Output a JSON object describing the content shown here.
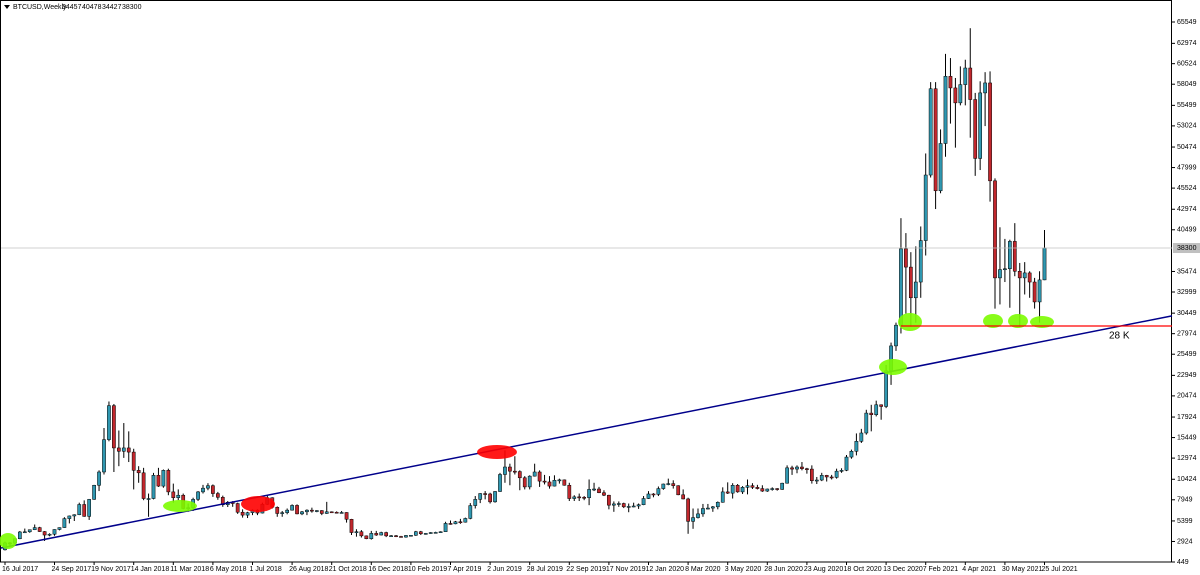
{
  "chart_data": {
    "type": "candlestick",
    "title": "BTCUSD,Weekly",
    "categories": [
      "16 Jul 2017",
      null,
      null,
      null,
      null,
      null,
      null,
      null,
      null,
      null,
      "24 Sep 2017",
      null,
      null,
      null,
      null,
      null,
      null,
      null,
      "19 Nov 2017",
      null,
      null,
      null,
      null,
      null,
      null,
      null,
      "14 Jan 2018",
      null,
      null,
      null,
      null,
      null,
      null,
      null,
      "11 Mar 2018",
      null,
      null,
      null,
      null,
      null,
      null,
      null,
      "6 May 2018",
      null,
      null,
      null,
      null,
      null,
      null,
      null,
      "1 Jul 2018",
      null,
      null,
      null,
      null,
      null,
      null,
      null,
      "26 Aug 2018",
      null,
      null,
      null,
      null,
      null,
      null,
      null,
      "21 Oct 2018",
      null,
      null,
      null,
      null,
      null,
      null,
      null,
      "16 Dec 2018",
      null,
      null,
      null,
      null,
      null,
      null,
      null,
      "10 Feb 2019",
      null,
      null,
      null,
      null,
      null,
      null,
      null,
      "7 Apr 2019",
      null,
      null,
      null,
      null,
      null,
      null,
      null,
      "2 Jun 2019",
      null,
      null,
      null,
      null,
      null,
      null,
      null,
      "28 Jul 2019",
      null,
      null,
      null,
      null,
      null,
      null,
      null,
      "22 Sep 2019",
      null,
      null,
      null,
      null,
      null,
      null,
      null,
      "17 Nov 2019",
      null,
      null,
      null,
      null,
      null,
      null,
      null,
      "12 Jan 2020",
      null,
      null,
      null,
      null,
      null,
      null,
      null,
      "8 Mar 2020",
      null,
      null,
      null,
      null,
      null,
      null,
      null,
      "3 May 2020",
      null,
      null,
      null,
      null,
      null,
      null,
      null,
      "28 Jun 2020",
      null,
      null,
      null,
      null,
      null,
      null,
      null,
      "23 Aug 2020",
      null,
      null,
      null,
      null,
      null,
      null,
      null,
      "18 Oct 2020",
      null,
      null,
      null,
      null,
      null,
      null,
      null,
      "13 Dec 2020",
      null,
      null,
      null,
      null,
      null,
      null,
      null,
      "7 Feb 2021",
      null,
      null,
      null,
      null,
      null,
      null,
      null,
      "4 Apr 2021",
      null,
      null,
      null,
      null,
      null,
      null,
      null,
      "30 May 2021",
      null,
      null,
      null,
      null,
      null,
      null,
      null,
      "25 Jul 2021"
    ],
    "open": [
      1915,
      2750,
      2730,
      3250,
      4070,
      4090,
      4340,
      4600,
      4120,
      3700,
      3800,
      4370,
      4600,
      5680,
      6000,
      6150,
      7380,
      5950,
      8000,
      9700,
      11300,
      15200,
      19300,
      14200,
      13800,
      14200,
      13700,
      11500,
      11200,
      8100,
      8100,
      10900,
      9600,
      11500,
      8900,
      8200,
      8500,
      6900,
      7000,
      8000,
      8900,
      9350,
      9650,
      8700,
      8250,
      7350,
      7650,
      7500,
      6450,
      6100,
      6400,
      6700,
      6350,
      7400,
      8200,
      7050,
      6300,
      6400,
      6700,
      7270,
      6250,
      6500,
      6700,
      6600,
      6650,
      6300,
      6500,
      6450,
      6400,
      6420,
      5600,
      4000,
      4100,
      3600,
      3250,
      3900,
      3700,
      4000,
      3600,
      3620,
      3530,
      3450,
      3650,
      3670,
      4100,
      3850,
      3900,
      4000,
      4020,
      4100,
      5100,
      5050,
      5300,
      5250,
      5700,
      7250,
      8000,
      8700,
      8650,
      7700,
      8950,
      11000,
      11900,
      11400,
      11350,
      10600,
      9500,
      10800,
      11300,
      10200,
      10100,
      9600,
      10300,
      10350,
      9700,
      8100,
      8300,
      8250,
      8200,
      9200,
      9250,
      8800,
      8500,
      7300,
      7450,
      7500,
      7100,
      7150,
      7200,
      7350,
      8100,
      8650,
      8600,
      9300,
      9850,
      9900,
      9650,
      8550,
      8050,
      5350,
      5800,
      6250,
      6900,
      6950,
      7100,
      7650,
      8900,
      8750,
      9700,
      8900,
      9450,
      9650,
      9450,
      9300,
      9000,
      9250,
      9300,
      9200,
      9950,
      11800,
      11650,
      11900,
      11700,
      11650,
      10250,
      10330,
      10900,
      10700,
      10650,
      11400,
      11500,
      13100,
      13800,
      15000,
      16000,
      18400,
      18200,
      19400,
      19200,
      23500,
      26500,
      29000,
      38200,
      36000,
      32300,
      34200,
      39200,
      47100,
      57500,
      45200,
      50900,
      59000,
      57600,
      55800,
      58000,
      60000,
      56200,
      49100,
      57000,
      58200,
      46400,
      34700,
      35700,
      35800,
      39100,
      35500,
      34700,
      35300,
      34200,
      31800,
      34457
    ],
    "high": [
      2900,
      2860,
      3290,
      4190,
      4480,
      4370,
      4970,
      4690,
      4180,
      3910,
      4400,
      4620,
      5850,
      6050,
      6200,
      7600,
      7880,
      8050,
      9750,
      11500,
      16600,
      19800,
      19500,
      16300,
      17200,
      16200,
      14100,
      12000,
      11800,
      8700,
      11200,
      11800,
      11600,
      11700,
      9900,
      9200,
      8700,
      7500,
      8200,
      9000,
      9750,
      9950,
      9800,
      8900,
      8450,
      7800,
      7790,
      7600,
      6800,
      6500,
      6800,
      6800,
      7600,
      8500,
      8250,
      7150,
      6600,
      6900,
      7400,
      7400,
      6600,
      6800,
      7000,
      6700,
      6700,
      7700,
      6550,
      6550,
      6600,
      6450,
      5650,
      4400,
      4300,
      3650,
      4200,
      4200,
      4100,
      4100,
      3700,
      3700,
      3600,
      3700,
      3700,
      4200,
      4200,
      3950,
      4050,
      4100,
      4150,
      5300,
      5450,
      5400,
      5650,
      5800,
      7550,
      8400,
      8750,
      9000,
      8800,
      9000,
      11200,
      13900,
      12300,
      13200,
      11500,
      10800,
      10900,
      12300,
      11500,
      10950,
      10800,
      10900,
      10500,
      10400,
      10000,
      8500,
      8700,
      8400,
      10400,
      10000,
      9500,
      9100,
      8550,
      7750,
      7750,
      7600,
      7500,
      7600,
      7500,
      8400,
      9000,
      8750,
      9550,
      9900,
      10500,
      10300,
      9700,
      9200,
      8200,
      6900,
      6900,
      7450,
      7450,
      7200,
      7750,
      9450,
      10050,
      9950,
      9850,
      9600,
      10400,
      9950,
      9750,
      9700,
      9300,
      9450,
      9350,
      10000,
      12100,
      12050,
      12100,
      12500,
      11800,
      12100,
      10700,
      11200,
      10950,
      10950,
      11700,
      11750,
      13350,
      14000,
      15950,
      16500,
      18800,
      19400,
      19900,
      19450,
      24200,
      26900,
      29300,
      41900,
      40100,
      37800,
      38500,
      40900,
      49700,
      58300,
      58300,
      52600,
      61700,
      61200,
      58800,
      60200,
      61000,
      64800,
      57000,
      58400,
      59500,
      59600,
      46700,
      40800,
      39400,
      39300,
      41300,
      36500,
      36600,
      35500,
      34700,
      35500,
      40478
    ],
    "low": [
      1840,
      2420,
      2640,
      3200,
      3960,
      3970,
      4300,
      4080,
      2980,
      3550,
      3620,
      4260,
      4570,
      5100,
      5390,
      6100,
      5900,
      5520,
      7950,
      9000,
      11000,
      15000,
      11300,
      12000,
      13000,
      12500,
      9200,
      10000,
      7900,
      5900,
      8000,
      9500,
      9400,
      8500,
      7600,
      7900,
      6800,
      6500,
      6600,
      7800,
      8700,
      9100,
      8300,
      7950,
      7100,
      7080,
      7100,
      6250,
      5800,
      5750,
      6100,
      6100,
      6300,
      7350,
      6900,
      5900,
      5900,
      6200,
      6650,
      6200,
      6100,
      6100,
      6400,
      6450,
      6100,
      6250,
      6400,
      6300,
      6350,
      5200,
      3700,
      3500,
      3400,
      3200,
      3150,
      3600,
      3650,
      3450,
      3500,
      3450,
      3400,
      3380,
      3550,
      3600,
      3700,
      3750,
      3850,
      3950,
      3950,
      4080,
      4950,
      5000,
      5050,
      5200,
      5600,
      6900,
      7550,
      8000,
      7500,
      7600,
      8900,
      10000,
      9700,
      11000,
      9100,
      9200,
      9200,
      10750,
      9500,
      9800,
      9300,
      9550,
      9900,
      9650,
      7800,
      7800,
      7800,
      7900,
      7300,
      9000,
      8750,
      8400,
      6800,
      6500,
      7100,
      6950,
      6450,
      7050,
      6850,
      7300,
      8050,
      8250,
      8400,
      9150,
      9700,
      9300,
      8500,
      8000,
      3850,
      4450,
      5700,
      5900,
      6800,
      6500,
      6800,
      7600,
      8650,
      8100,
      8800,
      8650,
      8600,
      9250,
      9200,
      8900,
      8900,
      9050,
      9050,
      9150,
      9900,
      10950,
      11150,
      11500,
      11100,
      9900,
      9850,
      10200,
      10150,
      10400,
      10500,
      11200,
      11400,
      12900,
      13300,
      14800,
      15800,
      16200,
      18000,
      17600,
      19000,
      21800,
      25900,
      28000,
      30400,
      28800,
      29300,
      32300,
      37400,
      46800,
      43000,
      44900,
      49300,
      53300,
      50400,
      55500,
      55500,
      51600,
      47000,
      47700,
      53000,
      43900,
      31000,
      31500,
      34200,
      31100,
      34900,
      28800,
      32700,
      32300,
      31000,
      29300,
      34427
    ],
    "close": [
      2750,
      2730,
      3250,
      4070,
      4090,
      4340,
      4600,
      4120,
      3700,
      3800,
      4370,
      4600,
      5680,
      6000,
      6150,
      7380,
      5950,
      8000,
      9700,
      11300,
      15200,
      19300,
      14200,
      13800,
      14200,
      13700,
      11500,
      11200,
      8100,
      8100,
      10900,
      9600,
      11500,
      8900,
      8200,
      8500,
      6900,
      7000,
      8000,
      8900,
      9350,
      9650,
      8700,
      8250,
      7350,
      7650,
      7500,
      6450,
      6100,
      6400,
      6700,
      6350,
      7400,
      8200,
      7050,
      6300,
      6400,
      6700,
      7270,
      6250,
      6500,
      6700,
      6600,
      6650,
      6300,
      6500,
      6450,
      6400,
      6420,
      5600,
      4000,
      4100,
      3600,
      3250,
      3900,
      3700,
      4000,
      3600,
      3620,
      3530,
      3450,
      3650,
      3670,
      4100,
      3850,
      3900,
      4000,
      4020,
      4100,
      5100,
      5050,
      5300,
      5250,
      5700,
      7250,
      8000,
      8700,
      8650,
      7700,
      8950,
      11000,
      11900,
      11400,
      11350,
      10600,
      9500,
      10800,
      11300,
      10200,
      10100,
      9600,
      10300,
      10350,
      9700,
      8100,
      8300,
      8250,
      8200,
      9200,
      9250,
      8800,
      8500,
      7300,
      7450,
      7500,
      7100,
      7150,
      7200,
      7350,
      8100,
      8650,
      8600,
      9300,
      9850,
      9900,
      9650,
      8550,
      8050,
      5350,
      5800,
      6250,
      6900,
      6950,
      7100,
      7650,
      8900,
      8750,
      9700,
      8900,
      9450,
      9650,
      9450,
      9300,
      9000,
      9250,
      9300,
      9200,
      9950,
      11800,
      11650,
      11900,
      11700,
      11650,
      10250,
      10330,
      10900,
      10700,
      10650,
      11400,
      11500,
      13100,
      13800,
      15000,
      16000,
      18400,
      18200,
      19400,
      19200,
      23500,
      26500,
      29000,
      38200,
      36000,
      32300,
      34200,
      39200,
      47100,
      57500,
      45200,
      50900,
      59000,
      57600,
      55800,
      58000,
      60000,
      56200,
      49100,
      57000,
      58200,
      46400,
      34700,
      35700,
      35800,
      39100,
      35500,
      34700,
      35300,
      34200,
      31800,
      34457,
      38300
    ],
    "up_color": "#2f97b0",
    "down_color": "#c1272d",
    "ylim": [
      449,
      68200
    ],
    "yticks": [
      449,
      2924,
      5399,
      7949,
      10424,
      12974,
      15449,
      17924,
      20474,
      22949,
      25499,
      27974,
      30449,
      32999,
      35474,
      40499,
      42974,
      45524,
      47999,
      50474,
      53024,
      55499,
      58049,
      60524,
      62974,
      65549
    ],
    "trendline": {
      "color": "#00008b",
      "values": [
        2234,
        27078
      ]
    },
    "level": {
      "price": 28900,
      "text": "28 K",
      "color": "#ff0000"
    }
  }
}
